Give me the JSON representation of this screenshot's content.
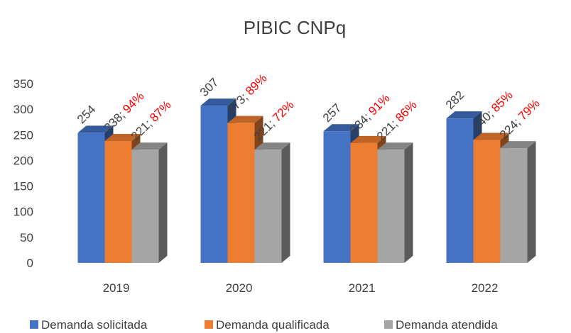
{
  "chart_data": {
    "type": "bar",
    "title": "PIBIC CNPq",
    "categories": [
      "2019",
      "2020",
      "2021",
      "2022"
    ],
    "series": [
      {
        "name": "Demanda solicitada",
        "color": "#4472c4",
        "values": [
          254,
          307,
          257,
          282
        ]
      },
      {
        "name": "Demanda qualificada",
        "color": "#ed7d31",
        "values": [
          238,
          273,
          234,
          240
        ],
        "value_labels": [
          "238;",
          "273;",
          "234;",
          "240;"
        ],
        "percent_labels": [
          "94%",
          "89%",
          "91%",
          "85%"
        ]
      },
      {
        "name": "Demanda atendida",
        "color": "#a5a5a5",
        "values": [
          221,
          221,
          221,
          224
        ],
        "value_labels": [
          "221;",
          "221;",
          "221;",
          "224;"
        ],
        "percent_labels": [
          "87%",
          "72%",
          "86%",
          "79%"
        ]
      }
    ],
    "percent_color": "#ff0000",
    "ylim": [
      0,
      350
    ],
    "yticks": [
      0,
      50,
      100,
      150,
      200,
      250,
      300,
      350
    ],
    "grid": false,
    "legend": "bottom"
  }
}
